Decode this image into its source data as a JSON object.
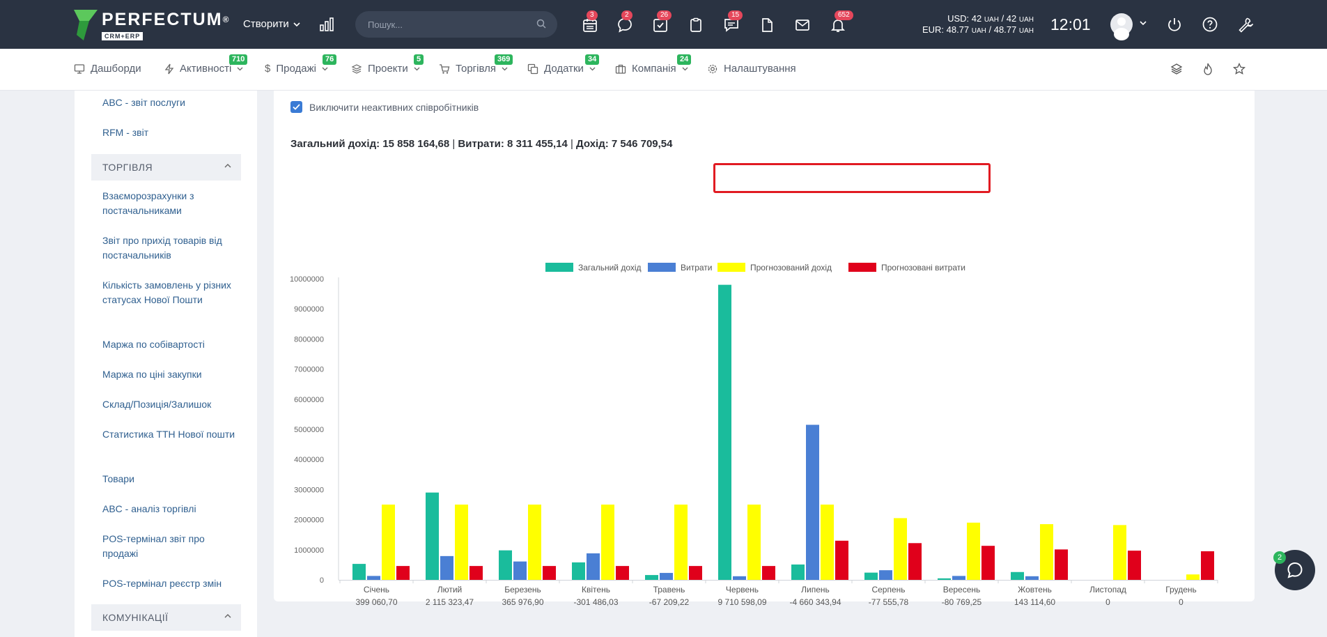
{
  "logo": {
    "name": "PERFECTUM",
    "registered": "®",
    "sub": "CRM+ERP"
  },
  "header": {
    "create_label": "Створити",
    "search_placeholder": "Пошук...",
    "icon_badges": [
      {
        "name": "calendar-icon",
        "count": "3"
      },
      {
        "name": "chat-bubble-icon",
        "count": "2"
      },
      {
        "name": "task-check-icon",
        "count": "26"
      },
      {
        "name": "clipboard-icon",
        "count": ""
      },
      {
        "name": "comments-icon",
        "count": "15"
      },
      {
        "name": "document-icon",
        "count": ""
      },
      {
        "name": "mail-icon",
        "count": ""
      },
      {
        "name": "bell-icon",
        "count": "652"
      }
    ],
    "currency_usd_prefix": "USD: 42",
    "currency_usd_unit": "UAH",
    "currency_usd_sep": " / 42 ",
    "currency_eur_prefix": "EUR: 48.77",
    "currency_eur_sep": " / 48.77 ",
    "time": "12:01"
  },
  "nav": [
    {
      "label": "Дашборди",
      "badge": "",
      "icon": "monitor-icon"
    },
    {
      "label": "Активності",
      "badge": "710",
      "icon": "lightning-icon"
    },
    {
      "label": "Продажі",
      "badge": "76",
      "icon": "dollar-icon"
    },
    {
      "label": "Проекти",
      "badge": "5",
      "icon": "layers-icon"
    },
    {
      "label": "Торгівля",
      "badge": "369",
      "icon": "cart-icon"
    },
    {
      "label": "Додатки",
      "badge": "34",
      "icon": "copy-icon"
    },
    {
      "label": "Компанія",
      "badge": "24",
      "icon": "briefcase-icon"
    },
    {
      "label": "Налаштування",
      "badge": "",
      "icon": "gear-icon"
    }
  ],
  "sidebar": {
    "top_links": [
      "ABC - звіт послуги",
      "RFM - звіт"
    ],
    "section_trade": "ТОРГІВЛЯ",
    "trade_links": [
      "Взаєморозрахунки з постачальниками",
      "Звіт про прихід товарів від постачальників",
      "Кількість замовлень у різних статусах Нової Пошти",
      "Маржа по собівартості",
      "Маржа по ціні закупки",
      "Склад/Позиція/Залишок",
      "Статистика ТТН Нової пошти",
      "Товари",
      "ABC - аналіз торгівлі",
      "POS-термінал звіт про продажі",
      "POS-термінал реєстр змін"
    ],
    "section_comm": "КОМУНІКАЦІЇ"
  },
  "main": {
    "checkbox_label": "Виключити неактивних співробітників",
    "summary_income_label": "Загальний дохід: 15 858 164,68",
    "summary_expense_label": "Витрати: 8 311 455,14",
    "summary_profit_label": "Дохід: 7 546 709,54",
    "summary_sep": " | "
  },
  "chart_data": {
    "type": "bar",
    "categories": [
      "Січень",
      "Лютий",
      "Березень",
      "Квітень",
      "Травень",
      "Червень",
      "Липень",
      "Серпень",
      "Вересень",
      "Жовтень",
      "Листопад",
      "Грудень"
    ],
    "sublabels": [
      "399 060,70",
      "2 115 323,47",
      "365 976,90",
      "-301 486,03",
      "-67 209,22",
      "9 710 598,09",
      "-4 660 343,94",
      "-77 555,78",
      "-80 769,25",
      "143 114,60",
      "0",
      "0"
    ],
    "series": [
      {
        "name": "Загальний дохід",
        "color": "#1abc9c",
        "values": [
          530000,
          2900000,
          980000,
          580000,
          160000,
          9800000,
          510000,
          240000,
          50000,
          260000,
          0,
          0
        ]
      },
      {
        "name": "Витрати",
        "color": "#4a7fd4",
        "values": [
          130000,
          790000,
          610000,
          880000,
          230000,
          120000,
          5150000,
          320000,
          130000,
          120000,
          0,
          0
        ]
      },
      {
        "name": "Прогнозований дохід",
        "color": "#ffff00",
        "values": [
          2500000,
          2500000,
          2500000,
          2500000,
          2500000,
          2500000,
          2500000,
          2050000,
          1900000,
          1850000,
          1820000,
          180000
        ]
      },
      {
        "name": "Прогнозовані витрати",
        "color": "#e0001b",
        "values": [
          460000,
          460000,
          460000,
          460000,
          460000,
          460000,
          1300000,
          1220000,
          1130000,
          1010000,
          970000,
          950000
        ]
      }
    ],
    "ylim": [
      0,
      10000000
    ],
    "yticks": [
      0,
      1000000,
      2000000,
      3000000,
      4000000,
      5000000,
      6000000,
      7000000,
      8000000,
      9000000,
      10000000
    ],
    "legend": "top-center"
  },
  "chat": {
    "badge": "2"
  }
}
